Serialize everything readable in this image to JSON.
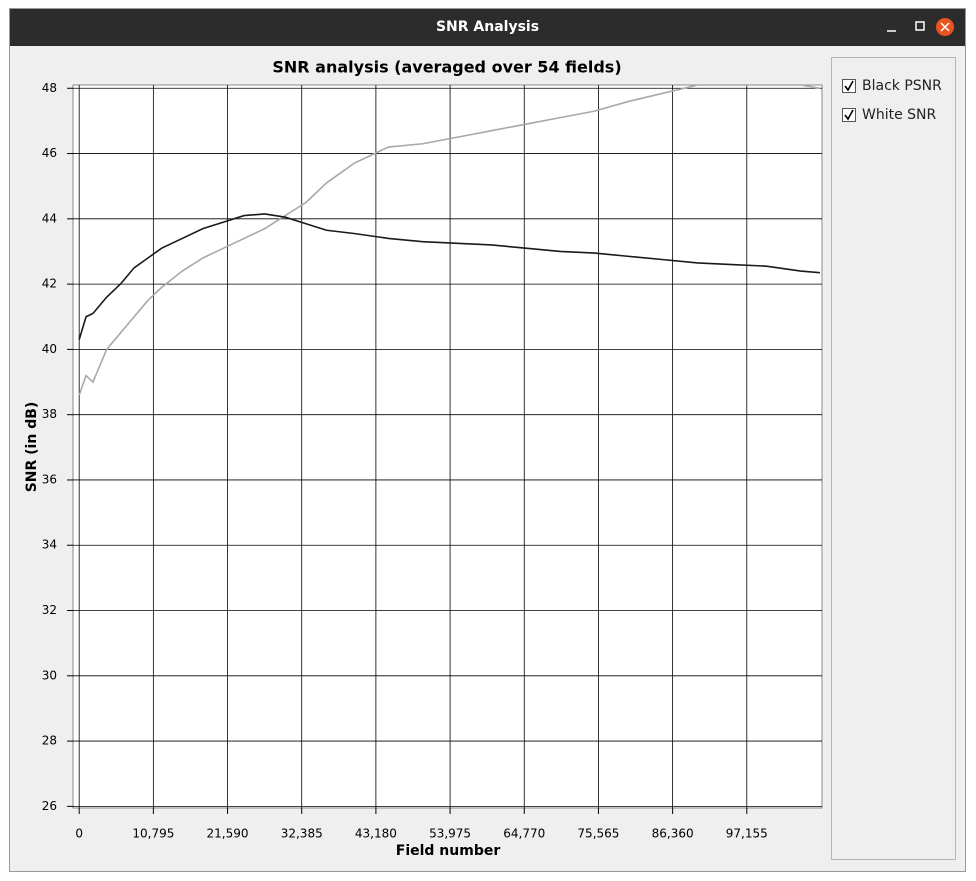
{
  "window": {
    "title": "SNR Analysis"
  },
  "chart_data": {
    "type": "line",
    "title": "SNR analysis (averaged over 54 fields)",
    "x_label": "Field number",
    "y_label": "SNR (in dB)",
    "x": [
      0,
      1000,
      2000,
      4000,
      6000,
      8000,
      10000,
      12000,
      15000,
      18000,
      21000,
      24000,
      27000,
      30000,
      33000,
      36000,
      40000,
      45000,
      50000,
      55000,
      60000,
      65000,
      70000,
      75000,
      80000,
      85000,
      90000,
      95000,
      100000,
      105000,
      107800
    ],
    "series": [
      {
        "name": "Black PSNR",
        "color": "#1a1a1a",
        "values": [
          40.3,
          41.0,
          41.1,
          41.6,
          42.0,
          42.5,
          42.8,
          43.1,
          43.4,
          43.7,
          43.9,
          44.1,
          44.15,
          44.05,
          43.85,
          43.65,
          43.55,
          43.4,
          43.3,
          43.25,
          43.2,
          43.1,
          43.0,
          42.95,
          42.85,
          42.75,
          42.65,
          42.6,
          42.55,
          42.4,
          42.35
        ]
      },
      {
        "name": "White SNR",
        "color": "#a8a8a8",
        "values": [
          38.6,
          39.2,
          39.0,
          40.0,
          40.5,
          41.0,
          41.5,
          41.9,
          42.4,
          42.8,
          43.1,
          43.4,
          43.7,
          44.1,
          44.5,
          45.1,
          45.7,
          46.2,
          46.3,
          46.5,
          46.7,
          46.9,
          47.1,
          47.3,
          47.6,
          47.85,
          48.1,
          48.1,
          48.1,
          48.1,
          48.0
        ]
      }
    ],
    "xlim": [
      -900,
      108100
    ],
    "xticks": [
      0,
      {
        "value": 10795,
        "label": "10,795"
      },
      {
        "value": 21590,
        "label": "21,590"
      },
      {
        "value": 32385,
        "label": "32,385"
      },
      {
        "value": 43180,
        "label": "43,180"
      },
      {
        "value": 53975,
        "label": "53,975"
      },
      {
        "value": 64770,
        "label": "64,770"
      },
      {
        "value": 75565,
        "label": "75,565"
      },
      {
        "value": 86360,
        "label": "86,360"
      },
      {
        "value": 97155,
        "label": "97,155"
      }
    ],
    "ylim": [
      25.95,
      48.1
    ],
    "yticks": [
      26,
      28,
      30,
      32,
      34,
      36,
      38,
      40,
      42,
      44,
      46,
      48
    ],
    "grid": true
  }
}
